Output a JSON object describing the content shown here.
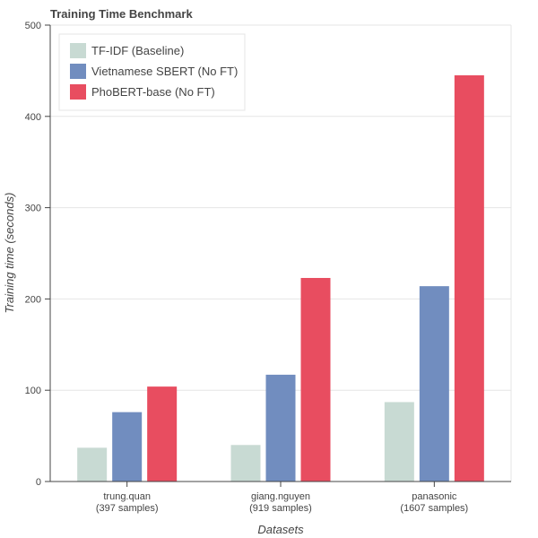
{
  "chart_data": {
    "type": "bar",
    "title": "Training Time Benchmark",
    "xlabel": "Datasets",
    "ylabel": "Training time (seconds)",
    "categories": [
      [
        "trung.quan",
        "(397 samples)"
      ],
      [
        "giang.nguyen",
        "(919 samples)"
      ],
      [
        "panasonic",
        "(1607 samples)"
      ]
    ],
    "series": [
      {
        "name": "TF-IDF (Baseline)",
        "color": "#c8dad3",
        "values": [
          37,
          40,
          87
        ]
      },
      {
        "name": "Vietnamese SBERT (No FT)",
        "color": "#718dbf",
        "values": [
          76,
          117,
          214
        ]
      },
      {
        "name": "PhoBERT-base (No FT)",
        "color": "#e84d60",
        "values": [
          104,
          223,
          445
        ]
      }
    ],
    "ylim": [
      0,
      500
    ],
    "yticks": [
      0,
      100,
      200,
      300,
      400,
      500
    ],
    "grid": "horizontal",
    "legend_position": "top-left"
  }
}
